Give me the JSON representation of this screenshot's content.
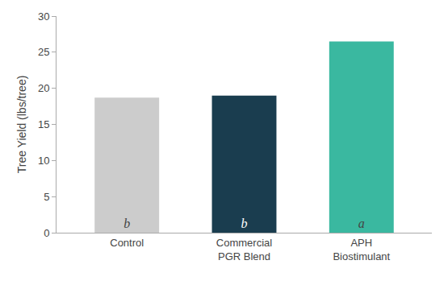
{
  "chart_data": {
    "type": "bar",
    "categories": [
      "Control",
      "Commercial\nPGR Blend",
      "APH\nBiostimulant"
    ],
    "values": [
      18.7,
      19.0,
      26.5
    ],
    "colors": [
      "#cccccc",
      "#1a3d4f",
      "#3ab8a0"
    ],
    "annotations": [
      "b",
      "b",
      "a"
    ],
    "ylabel": "Tree Yield (lbs/tree)",
    "ylim": [
      0,
      30
    ],
    "yticks": [
      0,
      5,
      10,
      15,
      20,
      25,
      30
    ],
    "grid": false
  }
}
